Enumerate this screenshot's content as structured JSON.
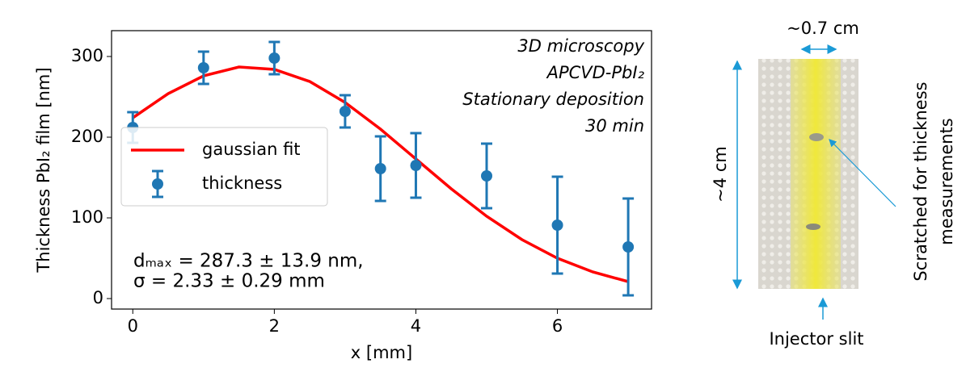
{
  "chart_data": {
    "type": "scatter",
    "xlabel": "x [mm]",
    "ylabel": "Thickness PbI₂ film [nm]",
    "annotations": [
      "3D microscopy",
      "APCVD-PbI₂",
      "Stationary deposition",
      "30 min"
    ],
    "fit_text": [
      "dₘₐₓ = 287.3 ± 13.9 nm,",
      "σ = 2.33 ± 0.29 mm"
    ],
    "xlim": [
      -0.3,
      7.33
    ],
    "ylim": [
      -13,
      332
    ],
    "xticks": [
      0,
      2,
      4,
      6
    ],
    "yticks": [
      0,
      100,
      200,
      300
    ],
    "legend": "upper left",
    "series": [
      {
        "name": "gaussian fit",
        "type": "line",
        "color": "#ff0000",
        "x": [
          0,
          0.5,
          1,
          1.5,
          2,
          2.5,
          3,
          3.5,
          4,
          4.5,
          5,
          5.5,
          6,
          6.5,
          7
        ],
        "values": [
          224,
          254,
          276,
          287,
          284,
          269,
          243,
          210,
          173,
          136,
          102,
          73,
          50,
          33,
          21
        ]
      },
      {
        "name": "thickness",
        "type": "scatter",
        "color": "#1f77b4",
        "x": [
          0,
          1,
          2,
          3,
          3.5,
          4,
          5,
          6,
          7
        ],
        "values": [
          212,
          286,
          298,
          232,
          161,
          165,
          152,
          91,
          64
        ],
        "errors": [
          19,
          20,
          20,
          20,
          40,
          40,
          40,
          60,
          60
        ]
      }
    ]
  },
  "photo": {
    "width_label": "~0.7 cm",
    "height_label": "~4 cm",
    "annotation": [
      "Scratched for thickness",
      "measurements"
    ],
    "bottom_label": "Injector slit"
  }
}
